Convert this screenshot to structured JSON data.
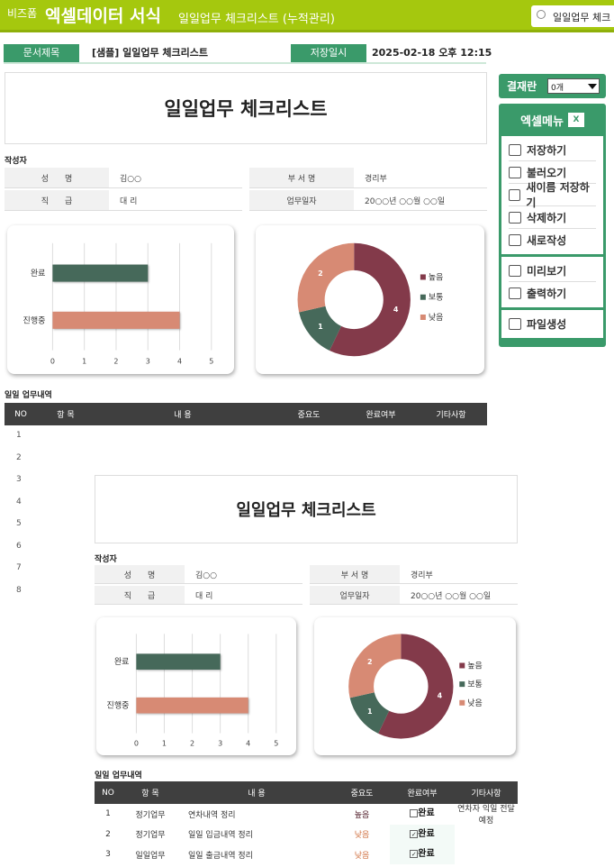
{
  "header": {
    "brand_small": "비즈폼",
    "brand": "엑셀데이터 서식",
    "subtitle": "일일업무 체크리스트 (누적관리)",
    "search_value": "일일업무 체크"
  },
  "docbar": {
    "title_label": "문서제목",
    "title_value": "[샘플] 일일업무 체크리스트",
    "date_label": "저장일시",
    "date_value": "2025-02-18  오후 12:15"
  },
  "sidebar": {
    "approval_label": "결재란",
    "approval_value": "0개",
    "menu_title": "엑셀메뉴",
    "groups": [
      [
        {
          "label": "저장하기",
          "icon": "save-icon"
        },
        {
          "label": "불러오기",
          "icon": "load-icon"
        },
        {
          "label": "새이름 저장하기",
          "icon": "save-as-icon"
        },
        {
          "label": "삭제하기",
          "icon": "trash-icon"
        },
        {
          "label": "새로작성",
          "icon": "new-doc-icon"
        }
      ],
      [
        {
          "label": "미리보기",
          "icon": "preview-icon"
        },
        {
          "label": "출력하기",
          "icon": "print-icon"
        }
      ],
      [
        {
          "label": "파일생성",
          "icon": "folder-icon"
        }
      ]
    ]
  },
  "doc": {
    "title": "일일업무 체크리스트",
    "author_label": "작성자",
    "fields": [
      {
        "label": "성　　명",
        "value": "김○○"
      },
      {
        "label": "부 서 명",
        "value": "경리부"
      },
      {
        "label": "직　　급",
        "value": "대 리"
      },
      {
        "label": "업무일자",
        "value": "20○○년 ○○월 ○○일"
      }
    ],
    "section_label": "일일 업무내역",
    "columns": [
      "NO",
      "항 목",
      "내 용",
      "중요도",
      "완료여부",
      "기타사항"
    ],
    "rows": [
      {
        "no": "1",
        "category": "정기업무",
        "content": "연차내역 정리",
        "importance": "높음",
        "done": false,
        "done_label": "완료",
        "note": "연차자 익일 전달예정"
      },
      {
        "no": "2",
        "category": "정기업무",
        "content": "일일 입금내역 정리",
        "importance": "낮음",
        "done": true,
        "done_label": "완료",
        "note": ""
      },
      {
        "no": "3",
        "category": "일일업무",
        "content": "일일 출금내역 정리",
        "importance": "낮음",
        "done": true,
        "done_label": "완료",
        "note": ""
      }
    ]
  },
  "row_numbers": [
    "1",
    "2",
    "3",
    "4",
    "5",
    "6",
    "7",
    "8"
  ],
  "colors": {
    "header": "#a5c80e",
    "accent": "#3a9a6a",
    "high": "#833a4a",
    "mid": "#46695a",
    "low": "#d78a74"
  },
  "chart_data": [
    {
      "type": "bar",
      "orientation": "horizontal",
      "categories": [
        "완료",
        "진행중"
      ],
      "values": [
        3,
        4
      ],
      "colors": [
        "#46695a",
        "#d78a74"
      ],
      "xlim": [
        0,
        5
      ],
      "xticks": [
        "0",
        "1",
        "2",
        "3",
        "4",
        "5"
      ],
      "grid": true
    },
    {
      "type": "donut",
      "categories": [
        "높음",
        "보통",
        "낮음"
      ],
      "values": [
        4,
        1,
        2
      ],
      "colors": [
        "#833a4a",
        "#46695a",
        "#d78a74"
      ],
      "legend": "right"
    }
  ]
}
